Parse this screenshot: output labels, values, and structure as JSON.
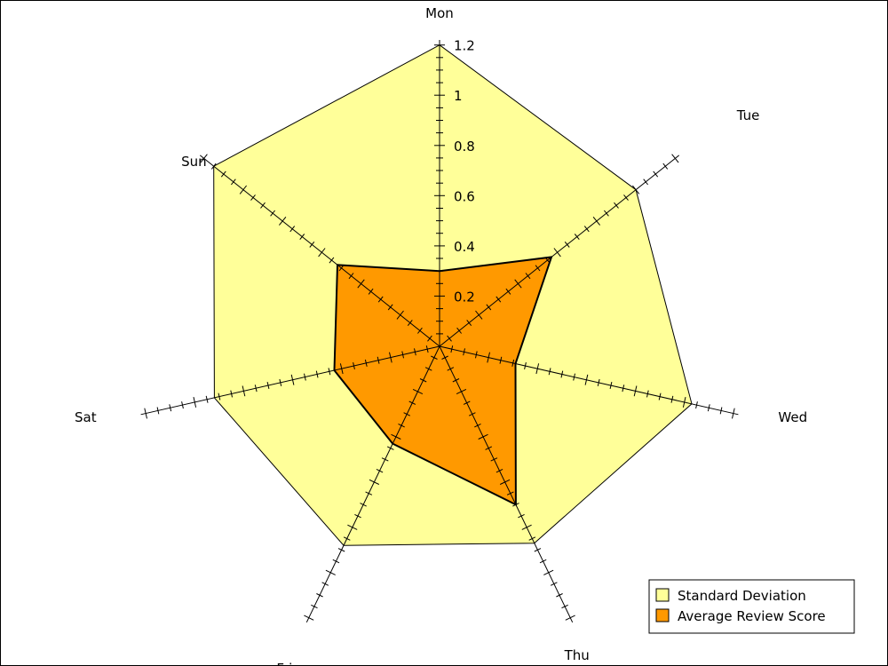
{
  "chart_data": {
    "type": "radar",
    "title": "",
    "categories": [
      "Mon",
      "Tue",
      "Wed",
      "Thu",
      "Fri",
      "Sat",
      "Sun"
    ],
    "rlim": [
      0,
      1.22
    ],
    "rticks": [
      0.2,
      0.4,
      0.6,
      0.8,
      1,
      1.2
    ],
    "rtick_labels": [
      "0.2",
      "0.4",
      "0.6",
      "0.8",
      "1",
      "1.2"
    ],
    "minor_tick_step": 0.05,
    "series": [
      {
        "name": "Standard Deviation",
        "values": [
          1.2,
          1.0,
          1.03,
          0.87,
          0.88,
          0.92,
          1.15
        ],
        "color": "#ffff99"
      },
      {
        "name": "Average Review Score",
        "values": [
          0.3,
          0.57,
          0.31,
          0.7,
          0.43,
          0.43,
          0.52
        ],
        "color": "#ff9900"
      }
    ],
    "legend_position": "bottom-right"
  }
}
